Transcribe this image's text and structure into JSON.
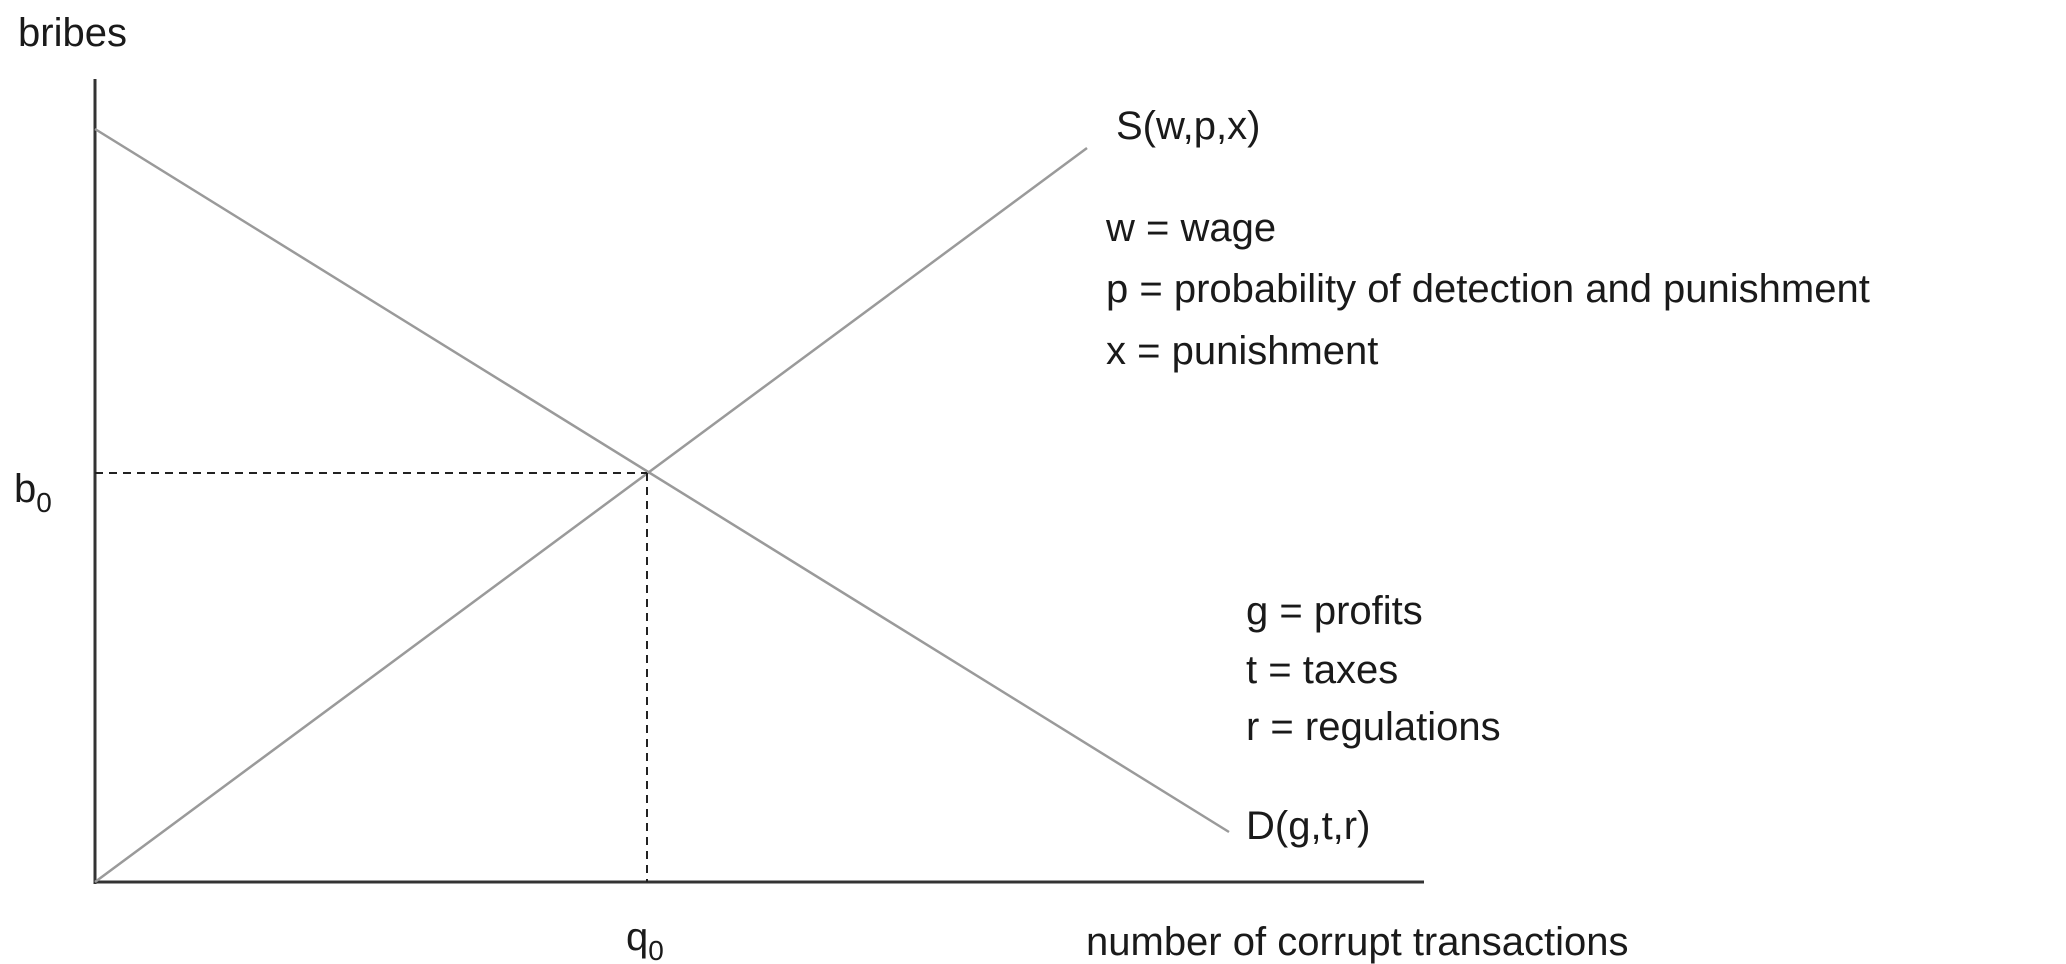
{
  "axes": {
    "y_label": "bribes",
    "x_label": "number of corrupt transactions"
  },
  "equilibrium": {
    "price": {
      "main": "b",
      "sub": "0"
    },
    "quantity": {
      "main": "q",
      "sub": "0"
    }
  },
  "supply": {
    "label": "S(w,p,x)",
    "legend": [
      "w = wage",
      "p = probability of detection and punishment",
      "x = punishment"
    ]
  },
  "demand": {
    "label": "D(g,t,r)",
    "legend": [
      "g = profits",
      "t = taxes",
      "r = regulations"
    ]
  }
}
